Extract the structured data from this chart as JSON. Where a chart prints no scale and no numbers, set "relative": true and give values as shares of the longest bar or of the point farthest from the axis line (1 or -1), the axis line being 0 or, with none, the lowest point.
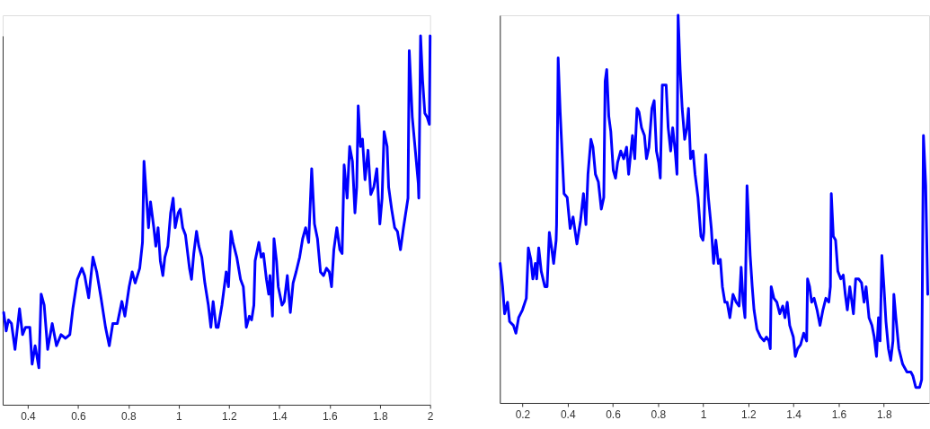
{
  "chart_data": [
    {
      "type": "line",
      "relative": true,
      "xlim": [
        0.3,
        2
      ],
      "xticks": [
        0.4,
        0.6,
        0.8,
        1,
        1.2,
        1.4,
        1.6,
        1.8,
        2
      ],
      "x": [
        0.304,
        0.314,
        0.323,
        0.335,
        0.349,
        0.367,
        0.379,
        0.391,
        0.408,
        0.417,
        0.429,
        0.444,
        0.453,
        0.465,
        0.479,
        0.497,
        0.514,
        0.532,
        0.55,
        0.567,
        0.579,
        0.597,
        0.615,
        0.626,
        0.642,
        0.659,
        0.674,
        0.691,
        0.709,
        0.724,
        0.738,
        0.756,
        0.774,
        0.786,
        0.803,
        0.815,
        0.827,
        0.845,
        0.856,
        0.862,
        0.871,
        0.88,
        0.888,
        0.901,
        0.909,
        0.918,
        0.927,
        0.937,
        0.945,
        0.957,
        0.968,
        0.978,
        0.986,
        0.998,
        1.006,
        1.016,
        1.027,
        1.043,
        1.051,
        1.06,
        1.071,
        1.08,
        1.092,
        1.104,
        1.118,
        1.128,
        1.137,
        1.149,
        1.157,
        1.172,
        1.189,
        1.198,
        1.208,
        1.216,
        1.231,
        1.246,
        1.257,
        1.269,
        1.281,
        1.29,
        1.299,
        1.304,
        1.319,
        1.328,
        1.337,
        1.349,
        1.358,
        1.363,
        1.373,
        1.379,
        1.389,
        1.396,
        1.411,
        1.42,
        1.432,
        1.444,
        1.455,
        1.467,
        1.481,
        1.493,
        1.505,
        1.517,
        1.529,
        1.54,
        1.552,
        1.564,
        1.576,
        1.588,
        1.599,
        1.608,
        1.617,
        1.629,
        1.641,
        1.65,
        1.658,
        1.67,
        1.68,
        1.691,
        1.701,
        1.708,
        1.714,
        1.723,
        1.731,
        1.741,
        1.753,
        1.764,
        1.776,
        1.788,
        1.8,
        1.809,
        1.817,
        1.829,
        1.835,
        1.847,
        1.859,
        1.87,
        1.882,
        1.894,
        1.912,
        1.917,
        1.929,
        1.941,
        1.953,
        1.955,
        1.962,
        1.97,
        1.979,
        1.988,
        1.997,
        2
      ],
      "series": [
        {
          "color": "#0000ff",
          "values": [
            0.25,
            0.2,
            0.23,
            0.22,
            0.15,
            0.26,
            0.19,
            0.21,
            0.21,
            0.11,
            0.16,
            0.1,
            0.3,
            0.27,
            0.15,
            0.22,
            0.16,
            0.19,
            0.18,
            0.19,
            0.26,
            0.34,
            0.37,
            0.35,
            0.29,
            0.4,
            0.36,
            0.29,
            0.21,
            0.16,
            0.22,
            0.22,
            0.28,
            0.24,
            0.32,
            0.36,
            0.33,
            0.37,
            0.44,
            0.66,
            0.57,
            0.48,
            0.55,
            0.48,
            0.43,
            0.48,
            0.39,
            0.35,
            0.4,
            0.43,
            0.52,
            0.56,
            0.48,
            0.52,
            0.53,
            0.48,
            0.46,
            0.37,
            0.34,
            0.41,
            0.47,
            0.43,
            0.4,
            0.33,
            0.27,
            0.21,
            0.28,
            0.21,
            0.21,
            0.27,
            0.36,
            0.32,
            0.47,
            0.44,
            0.4,
            0.34,
            0.32,
            0.21,
            0.24,
            0.23,
            0.27,
            0.39,
            0.44,
            0.4,
            0.41,
            0.34,
            0.3,
            0.35,
            0.24,
            0.45,
            0.39,
            0.32,
            0.27,
            0.28,
            0.35,
            0.25,
            0.33,
            0.36,
            0.4,
            0.45,
            0.48,
            0.44,
            0.64,
            0.49,
            0.45,
            0.36,
            0.35,
            0.37,
            0.36,
            0.32,
            0.42,
            0.48,
            0.42,
            0.41,
            0.65,
            0.56,
            0.7,
            0.66,
            0.52,
            0.59,
            0.81,
            0.7,
            0.72,
            0.61,
            0.69,
            0.57,
            0.59,
            0.64,
            0.49,
            0.56,
            0.74,
            0.7,
            0.59,
            0.53,
            0.48,
            0.47,
            0.42,
            0.48,
            0.56,
            0.96,
            0.78,
            0.69,
            0.6,
            0.56,
            1,
            0.88,
            0.79,
            0.78,
            0.76,
            1
          ]
        }
      ]
    },
    {
      "type": "line",
      "relative": true,
      "xlim": [
        0.1,
        2
      ],
      "xticks": [
        0.2,
        0.4,
        0.6,
        0.8,
        1,
        1.2,
        1.4,
        1.6,
        1.8
      ],
      "x": [
        0.101,
        0.112,
        0.121,
        0.134,
        0.143,
        0.16,
        0.171,
        0.183,
        0.2,
        0.217,
        0.226,
        0.237,
        0.246,
        0.257,
        0.263,
        0.272,
        0.283,
        0.299,
        0.309,
        0.319,
        0.329,
        0.338,
        0.349,
        0.351,
        0.358,
        0.367,
        0.375,
        0.384,
        0.398,
        0.411,
        0.424,
        0.441,
        0.457,
        0.47,
        0.481,
        0.49,
        0.503,
        0.512,
        0.523,
        0.536,
        0.549,
        0.56,
        0.566,
        0.573,
        0.582,
        0.591,
        0.602,
        0.612,
        0.621,
        0.635,
        0.648,
        0.661,
        0.67,
        0.687,
        0.697,
        0.707,
        0.716,
        0.727,
        0.74,
        0.749,
        0.76,
        0.773,
        0.783,
        0.793,
        0.803,
        0.81,
        0.819,
        0.836,
        0.845,
        0.856,
        0.865,
        0.876,
        0.884,
        0.889,
        0.898,
        0.907,
        0.918,
        0.928,
        0.935,
        0.944,
        0.955,
        0.964,
        0.977,
        0.99,
        0.999,
        1.003,
        1.011,
        1.023,
        1.036,
        1.046,
        1.056,
        1.067,
        1.076,
        1.085,
        1.096,
        1.106,
        1.118,
        1.132,
        1.146,
        1.159,
        1.168,
        1.177,
        1.185,
        1.194,
        1.208,
        1.217,
        1.225,
        1.238,
        1.254,
        1.269,
        1.28,
        1.291,
        1.297,
        1.301,
        1.313,
        1.326,
        1.339,
        1.352,
        1.362,
        1.372,
        1.383,
        1.399,
        1.408,
        1.418,
        1.431,
        1.445,
        1.458,
        1.462,
        1.471,
        1.48,
        1.491,
        1.504,
        1.517,
        1.53,
        1.543,
        1.556,
        1.563,
        1.567,
        1.576,
        1.586,
        1.596,
        1.609,
        1.62,
        1.629,
        1.638,
        1.649,
        1.665,
        1.675,
        1.688,
        1.701,
        1.712,
        1.721,
        1.734,
        1.747,
        1.757,
        1.767,
        1.776,
        1.783,
        1.791,
        1.8,
        1.809,
        1.82,
        1.83,
        1.84,
        1.844,
        1.853,
        1.866,
        1.883,
        1.902,
        1.919,
        1.928,
        1.941,
        1.958,
        1.967,
        1.975,
        1.985,
        1.994
      ],
      "series": [
        {
          "color": "#0000ff",
          "values": [
            0.36,
            0.3,
            0.23,
            0.26,
            0.21,
            0.2,
            0.18,
            0.22,
            0.24,
            0.27,
            0.4,
            0.37,
            0.32,
            0.36,
            0.32,
            0.4,
            0.34,
            0.3,
            0.3,
            0.44,
            0.4,
            0.36,
            0.42,
            0.46,
            0.89,
            0.75,
            0.65,
            0.54,
            0.53,
            0.45,
            0.48,
            0.41,
            0.47,
            0.54,
            0.46,
            0.59,
            0.68,
            0.66,
            0.59,
            0.57,
            0.5,
            0.53,
            0.83,
            0.86,
            0.74,
            0.7,
            0.6,
            0.58,
            0.62,
            0.65,
            0.63,
            0.66,
            0.59,
            0.69,
            0.63,
            0.76,
            0.75,
            0.71,
            0.69,
            0.63,
            0.66,
            0.76,
            0.78,
            0.65,
            0.62,
            0.58,
            0.82,
            0.82,
            0.71,
            0.65,
            0.71,
            0.65,
            0.59,
            1,
            0.86,
            0.76,
            0.68,
            0.71,
            0.76,
            0.63,
            0.65,
            0.59,
            0.53,
            0.43,
            0.42,
            0.44,
            0.64,
            0.53,
            0.45,
            0.36,
            0.42,
            0.36,
            0.37,
            0.3,
            0.26,
            0.26,
            0.22,
            0.28,
            0.26,
            0.25,
            0.35,
            0.26,
            0.22,
            0.56,
            0.38,
            0.3,
            0.24,
            0.19,
            0.17,
            0.16,
            0.17,
            0.16,
            0.14,
            0.3,
            0.27,
            0.26,
            0.23,
            0.25,
            0.22,
            0.26,
            0.2,
            0.17,
            0.12,
            0.14,
            0.15,
            0.18,
            0.16,
            0.32,
            0.3,
            0.26,
            0.27,
            0.24,
            0.2,
            0.24,
            0.27,
            0.26,
            0.3,
            0.54,
            0.43,
            0.42,
            0.34,
            0.32,
            0.33,
            0.28,
            0.24,
            0.3,
            0.23,
            0.32,
            0.32,
            0.31,
            0.26,
            0.3,
            0.22,
            0.2,
            0.17,
            0.12,
            0.22,
            0.16,
            0.38,
            0.3,
            0.21,
            0.14,
            0.11,
            0.16,
            0.28,
            0.22,
            0.14,
            0.1,
            0.08,
            0.08,
            0.07,
            0.04,
            0.04,
            0.06,
            0.69,
            0.56,
            0.28
          ]
        }
      ]
    }
  ]
}
